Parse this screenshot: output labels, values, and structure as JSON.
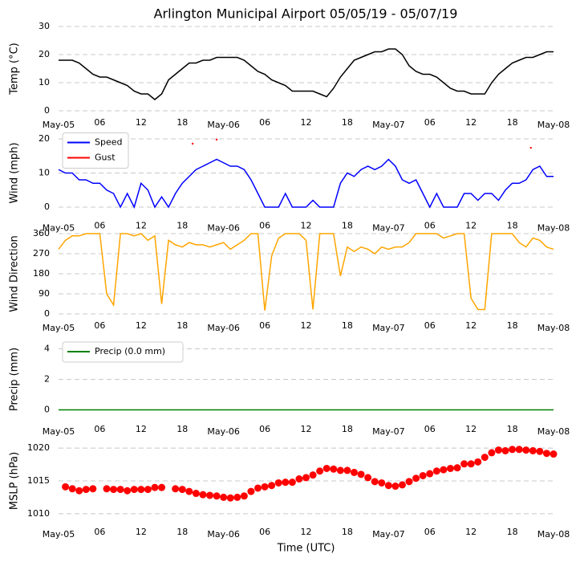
{
  "chart_data": [
    {
      "type": "line",
      "title": "Arlington Municipal Airport 05/05/19 - 05/07/19",
      "ylabel": "Temp (°C)",
      "color": "#000000",
      "x": [
        0,
        1,
        2,
        3,
        4,
        5,
        6,
        7,
        8,
        9,
        10,
        11,
        12,
        13,
        14,
        15,
        16,
        17,
        18,
        19,
        20,
        21,
        22,
        23,
        24,
        25,
        26,
        27,
        28,
        29,
        30,
        31,
        32,
        33,
        34,
        35,
        36,
        37,
        38,
        39,
        40,
        41,
        42,
        43,
        44,
        45,
        46,
        47,
        48,
        49,
        50,
        51,
        52,
        53,
        54,
        55,
        56,
        57,
        58,
        59,
        60,
        61,
        62,
        63,
        64,
        65,
        66,
        67,
        68,
        69,
        70,
        71,
        72
      ],
      "values": [
        18,
        18,
        18,
        17,
        15,
        13,
        12,
        12,
        11,
        10,
        9,
        7,
        6,
        6,
        4,
        6,
        11,
        13,
        15,
        17,
        17,
        18,
        18,
        19,
        19,
        19,
        19,
        18,
        16,
        14,
        13,
        11,
        10,
        9,
        7,
        7,
        7,
        7,
        6,
        5,
        8,
        12,
        15,
        18,
        19,
        20,
        21,
        21,
        22,
        22,
        20,
        16,
        14,
        13,
        13,
        12,
        10,
        8,
        7,
        7,
        6,
        6,
        6,
        10,
        13,
        15,
        17,
        18,
        19,
        19,
        20,
        21,
        21
      ],
      "xlim": [
        0,
        72
      ],
      "ylim": [
        0,
        30
      ],
      "yticks": [
        0,
        10,
        20,
        30
      ],
      "grid": true,
      "xticks": [
        {
          "value": 0,
          "label": "May-05"
        },
        {
          "value": 6,
          "label": "06"
        },
        12,
        18,
        {
          "value": 24,
          "label": "May-06"
        },
        {
          "value": 30,
          "label": "06"
        },
        {
          "value": 36,
          "label": "12"
        },
        {
          "value": 42,
          "label": "18"
        },
        {
          "value": 48,
          "label": "May-07"
        },
        {
          "value": 54,
          "label": "06"
        },
        {
          "value": 60,
          "label": "12"
        },
        {
          "value": 66,
          "label": "18"
        },
        {
          "value": 72,
          "label": "May-08"
        }
      ]
    },
    {
      "type": "line",
      "ylabel": "Wind (mph)",
      "legend": "upper left",
      "x": [
        0,
        1,
        2,
        3,
        4,
        5,
        6,
        7,
        8,
        9,
        10,
        11,
        12,
        13,
        14,
        15,
        16,
        17,
        18,
        19,
        20,
        21,
        22,
        23,
        24,
        25,
        26,
        27,
        28,
        29,
        30,
        31,
        32,
        33,
        34,
        35,
        36,
        37,
        38,
        39,
        40,
        41,
        42,
        43,
        44,
        45,
        46,
        47,
        48,
        49,
        50,
        51,
        52,
        53,
        54,
        55,
        56,
        57,
        58,
        59,
        60,
        61,
        62,
        63,
        64,
        65,
        66,
        67,
        68,
        69,
        70,
        71,
        72
      ],
      "series": [
        {
          "name": "Speed",
          "color": "#0000ff",
          "style": "line",
          "values": [
            11,
            10,
            10,
            8,
            8,
            7,
            7,
            5,
            4,
            0,
            4,
            0,
            7,
            5,
            0,
            3,
            0,
            4,
            7,
            9,
            11,
            12,
            13,
            14,
            13,
            12,
            12,
            11,
            8,
            4,
            0,
            0,
            0,
            4,
            0,
            0,
            0,
            2,
            0,
            0,
            0,
            7,
            10,
            9,
            11,
            12,
            11,
            12,
            14,
            12,
            8,
            7,
            8,
            4,
            0,
            4,
            0,
            0,
            0,
            4,
            4,
            2,
            4,
            4,
            2,
            5,
            7,
            7,
            8,
            11,
            12,
            9,
            9
          ]
        },
        {
          "name": "Gust",
          "color": "#ff0000",
          "style": "points",
          "x": [
            19.5,
            23,
            68.7
          ],
          "values": [
            18.6,
            19.8,
            17.4
          ]
        }
      ],
      "xlim": [
        0,
        72
      ],
      "ylim": [
        -2,
        22
      ],
      "yticks": [
        0,
        10,
        20
      ],
      "grid": true,
      "xticks": [
        {
          "value": 0,
          "label": "May-05"
        },
        {
          "value": 6,
          "label": "06"
        },
        12,
        18,
        {
          "value": 24,
          "label": "May-06"
        },
        {
          "value": 30,
          "label": "06"
        },
        {
          "value": 36,
          "label": "12"
        },
        {
          "value": 42,
          "label": "18"
        },
        {
          "value": 48,
          "label": "May-07"
        },
        {
          "value": 54,
          "label": "06"
        },
        {
          "value": 60,
          "label": "12"
        },
        {
          "value": 66,
          "label": "18"
        },
        {
          "value": 72,
          "label": "May-08"
        }
      ]
    },
    {
      "type": "line",
      "ylabel": "Wind Direction",
      "color": "#ffa500",
      "x": [
        0,
        1,
        2,
        3,
        4,
        5,
        6,
        7,
        8,
        9,
        10,
        11,
        12,
        13,
        14,
        15,
        16,
        17,
        18,
        19,
        20,
        21,
        22,
        23,
        24,
        25,
        26,
        27,
        28,
        29,
        30,
        31,
        32,
        33,
        34,
        35,
        36,
        37,
        38,
        39,
        40,
        41,
        42,
        43,
        44,
        45,
        46,
        47,
        48,
        49,
        50,
        51,
        52,
        53,
        54,
        55,
        56,
        57,
        58,
        59,
        60,
        61,
        62,
        63,
        64,
        65,
        66,
        67,
        68,
        69,
        70,
        71,
        72
      ],
      "values": [
        290,
        330,
        350,
        350,
        360,
        360,
        360,
        90,
        40,
        360,
        360,
        350,
        360,
        330,
        350,
        45,
        330,
        310,
        300,
        320,
        310,
        310,
        300,
        310,
        320,
        290,
        310,
        330,
        360,
        360,
        15,
        260,
        340,
        360,
        360,
        360,
        330,
        20,
        360,
        360,
        360,
        170,
        300,
        280,
        300,
        290,
        270,
        300,
        290,
        300,
        300,
        320,
        360,
        360,
        360,
        360,
        340,
        350,
        360,
        360,
        70,
        20,
        20,
        360,
        360,
        360,
        360,
        320,
        300,
        340,
        330,
        300,
        290
      ],
      "xlim": [
        0,
        72
      ],
      "ylim": [
        0,
        360
      ],
      "yticks": [
        0,
        90,
        180,
        270,
        360
      ],
      "grid": true,
      "xticks": [
        {
          "value": 0,
          "label": "May-05"
        },
        {
          "value": 6,
          "label": "06"
        },
        12,
        18,
        {
          "value": 24,
          "label": "May-06"
        },
        {
          "value": 30,
          "label": "06"
        },
        {
          "value": 36,
          "label": "12"
        },
        {
          "value": 42,
          "label": "18"
        },
        {
          "value": 48,
          "label": "May-07"
        },
        {
          "value": 54,
          "label": "06"
        },
        {
          "value": 60,
          "label": "12"
        },
        {
          "value": 66,
          "label": "18"
        },
        {
          "value": 72,
          "label": "May-08"
        }
      ]
    },
    {
      "type": "line",
      "ylabel": "Precip (mm)",
      "legend": "upper left",
      "x": [
        0,
        1,
        2,
        3,
        4,
        5,
        6,
        7,
        8,
        9,
        10,
        11,
        12,
        13,
        14,
        15,
        16,
        17,
        18,
        19,
        20,
        21,
        22,
        23,
        24,
        25,
        26,
        27,
        28,
        29,
        30,
        31,
        32,
        33,
        34,
        35,
        36,
        37,
        38,
        39,
        40,
        41,
        42,
        43,
        44,
        45,
        46,
        47,
        48,
        49,
        50,
        51,
        52,
        53,
        54,
        55,
        56,
        57,
        58,
        59,
        60,
        61,
        62,
        63,
        64,
        65,
        66,
        67,
        68,
        69,
        70,
        71,
        72
      ],
      "series": [
        {
          "name": "Precip (0.0 mm)",
          "color": "#008000",
          "style": "line",
          "values": [
            0,
            0,
            0,
            0,
            0,
            0,
            0,
            0,
            0,
            0,
            0,
            0,
            0,
            0,
            0,
            0,
            0,
            0,
            0,
            0,
            0,
            0,
            0,
            0,
            0,
            0,
            0,
            0,
            0,
            0,
            0,
            0,
            0,
            0,
            0,
            0,
            0,
            0,
            0,
            0,
            0,
            0,
            0,
            0,
            0,
            0,
            0,
            0,
            0,
            0,
            0,
            0,
            0,
            0,
            0,
            0,
            0,
            0,
            0,
            0,
            0,
            0,
            0,
            0,
            0,
            0,
            0,
            0,
            0,
            0,
            0,
            0,
            0
          ]
        }
      ],
      "xlim": [
        0,
        72
      ],
      "ylim": [
        -0.5,
        4.5
      ],
      "yticks": [
        0,
        2,
        4
      ],
      "grid": true,
      "xticks": [
        {
          "value": 0,
          "label": "May-05"
        },
        {
          "value": 6,
          "label": "06"
        },
        12,
        18,
        {
          "value": 24,
          "label": "May-06"
        },
        {
          "value": 30,
          "label": "06"
        },
        {
          "value": 36,
          "label": "12"
        },
        {
          "value": 42,
          "label": "18"
        },
        {
          "value": 48,
          "label": "May-07"
        },
        {
          "value": 54,
          "label": "06"
        },
        {
          "value": 60,
          "label": "12"
        },
        {
          "value": 66,
          "label": "18"
        },
        {
          "value": 72,
          "label": "May-08"
        }
      ]
    },
    {
      "type": "scatter",
      "ylabel": "MSLP (hPa)",
      "xlabel": "Time (UTC)",
      "color": "#ff0000",
      "x": [
        1,
        2,
        3,
        4,
        5,
        7,
        8,
        9,
        10,
        11,
        12,
        13,
        14,
        15,
        17,
        18,
        19,
        20,
        21,
        22,
        23,
        24,
        25,
        26,
        27,
        28,
        29,
        30,
        31,
        32,
        33,
        34,
        35,
        36,
        37,
        38,
        39,
        40,
        41,
        42,
        43,
        44,
        45,
        46,
        47,
        48,
        49,
        50,
        51,
        52,
        53,
        54,
        55,
        56,
        57,
        58,
        59,
        60,
        61,
        62,
        63,
        64,
        65,
        66,
        67,
        68,
        69,
        70,
        71,
        72
      ],
      "values": [
        1014.1,
        1013.8,
        1013.5,
        1013.7,
        1013.8,
        1013.8,
        1013.7,
        1013.7,
        1013.5,
        1013.7,
        1013.7,
        1013.7,
        1014.0,
        1014.0,
        1013.8,
        1013.7,
        1013.4,
        1013.1,
        1012.9,
        1012.8,
        1012.7,
        1012.5,
        1012.4,
        1012.5,
        1012.7,
        1013.4,
        1013.9,
        1014.1,
        1014.3,
        1014.7,
        1014.8,
        1014.8,
        1015.3,
        1015.5,
        1015.9,
        1016.5,
        1016.9,
        1016.8,
        1016.6,
        1016.6,
        1016.3,
        1016.0,
        1015.5,
        1014.9,
        1014.7,
        1014.3,
        1014.2,
        1014.4,
        1014.9,
        1015.4,
        1015.8,
        1016.1,
        1016.5,
        1016.7,
        1016.9,
        1017.0,
        1017.6,
        1017.6,
        1017.9,
        1018.6,
        1019.3,
        1019.7,
        1019.6,
        1019.8,
        1019.8,
        1019.7,
        1019.6,
        1019.5,
        1019.2,
        1019.1
      ],
      "xlim": [
        0,
        72
      ],
      "ylim": [
        1009,
        1021
      ],
      "yticks": [
        1010,
        1015,
        1020
      ],
      "grid": true,
      "xticks": [
        {
          "value": 0,
          "label": "May-05"
        },
        {
          "value": 6,
          "label": "06"
        },
        12,
        18,
        {
          "value": 24,
          "label": "May-06"
        },
        {
          "value": 30,
          "label": "06"
        },
        {
          "value": 36,
          "label": "12"
        },
        {
          "value": 42,
          "label": "18"
        },
        {
          "value": 48,
          "label": "May-07"
        },
        {
          "value": 54,
          "label": "06"
        },
        {
          "value": 60,
          "label": "12"
        },
        {
          "value": 66,
          "label": "18"
        },
        {
          "value": 72,
          "label": "May-08"
        }
      ]
    }
  ]
}
